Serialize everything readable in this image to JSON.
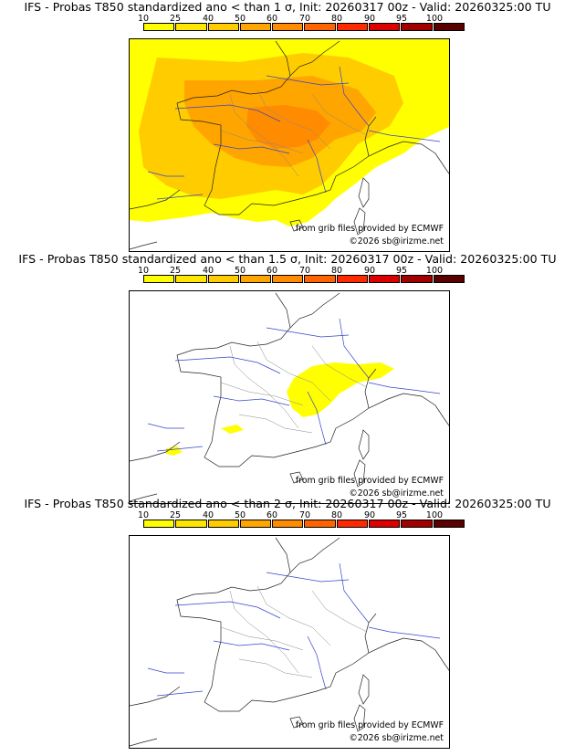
{
  "legend": {
    "ticks": [
      "10",
      "25",
      "40",
      "50",
      "60",
      "70",
      "80",
      "90",
      "95",
      "100"
    ],
    "colors": [
      "#ffff00",
      "#ffe600",
      "#ffcc00",
      "#ffa500",
      "#ff8c00",
      "#ff6400",
      "#ff2a00",
      "#dd0000",
      "#a00000",
      "#5a0000"
    ]
  },
  "panels": [
    {
      "title": "IFS - Probas T850  standardized ano < than 1 σ, Init: 20260317 00z - Valid: 20260325:00 TU",
      "credit_source": "from grib files provided by ECMWF",
      "credit_copyright": "©2026 sb@irizme.net"
    },
    {
      "title": "IFS - Probas T850  standardized ano < than 1.5 σ, Init: 20260317 00z - Valid: 20260325:00 TU",
      "credit_source": "from grib files provided by ECMWF",
      "credit_copyright": "©2026 sb@irizme.net"
    },
    {
      "title": "IFS - Probas T850  standardized ano < than 2 σ, Init: 20260317 00z - Valid: 20260325:00 TU",
      "credit_source": "from grib files provided by ECMWF",
      "credit_copyright": "©2026 sb@irizme.net"
    }
  ]
}
